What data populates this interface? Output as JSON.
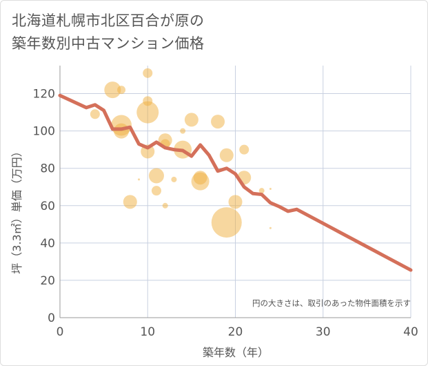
{
  "chart_data": {
    "type": "scatter",
    "title_lines": [
      "北海道札幌市北区百合が原の",
      "築年数別中古マンション価格"
    ],
    "xlabel": "築年数（年）",
    "ylabel": "坪（3.3㎡）単価（万円）",
    "xlim": [
      0,
      40
    ],
    "ylim": [
      0,
      135
    ],
    "xticks": [
      0,
      10,
      20,
      30,
      40
    ],
    "yticks": [
      0,
      20,
      40,
      60,
      80,
      100,
      120
    ],
    "grid": true,
    "note": "円の大きさは、取引のあった物件面積を示す",
    "colors": {
      "bubble": "#f0b040",
      "trend": "#d4705a",
      "grid": "#c8d0e0",
      "text": "#555555"
    },
    "bubbles": [
      {
        "x": 4,
        "y": 109,
        "s": 7
      },
      {
        "x": 6,
        "y": 122,
        "s": 12
      },
      {
        "x": 7,
        "y": 122,
        "s": 6
      },
      {
        "x": 7,
        "y": 103,
        "s": 15
      },
      {
        "x": 7,
        "y": 100,
        "s": 11
      },
      {
        "x": 8,
        "y": 62,
        "s": 10
      },
      {
        "x": 9,
        "y": 74,
        "s": 1.5
      },
      {
        "x": 10,
        "y": 131,
        "s": 7
      },
      {
        "x": 10,
        "y": 116,
        "s": 7
      },
      {
        "x": 10,
        "y": 110,
        "s": 16
      },
      {
        "x": 10,
        "y": 89,
        "s": 10
      },
      {
        "x": 11,
        "y": 76,
        "s": 11
      },
      {
        "x": 11,
        "y": 68,
        "s": 7
      },
      {
        "x": 12,
        "y": 95,
        "s": 10
      },
      {
        "x": 12,
        "y": 93,
        "s": 7
      },
      {
        "x": 12,
        "y": 60,
        "s": 4
      },
      {
        "x": 13,
        "y": 74,
        "s": 4
      },
      {
        "x": 14,
        "y": 100,
        "s": 4
      },
      {
        "x": 14,
        "y": 90,
        "s": 13
      },
      {
        "x": 15,
        "y": 106,
        "s": 10
      },
      {
        "x": 16,
        "y": 75,
        "s": 10
      },
      {
        "x": 16,
        "y": 73,
        "s": 13
      },
      {
        "x": 18,
        "y": 105,
        "s": 10
      },
      {
        "x": 19,
        "y": 87,
        "s": 10
      },
      {
        "x": 19,
        "y": 51,
        "s": 22
      },
      {
        "x": 20,
        "y": 62,
        "s": 10
      },
      {
        "x": 21,
        "y": 90,
        "s": 7
      },
      {
        "x": 21,
        "y": 75,
        "s": 10
      },
      {
        "x": 23,
        "y": 68,
        "s": 4
      },
      {
        "x": 24,
        "y": 69,
        "s": 1.5
      },
      {
        "x": 24,
        "y": 48,
        "s": 1.5
      }
    ],
    "trend": {
      "x": [
        0,
        3,
        4,
        5,
        6,
        7,
        8,
        9,
        10,
        11,
        12,
        13,
        14,
        15,
        16,
        17,
        18,
        19,
        20,
        21,
        22,
        23,
        24,
        25,
        26,
        27,
        28,
        29,
        30,
        31,
        32,
        33,
        34,
        35,
        36,
        37,
        38,
        39,
        40
      ],
      "y": [
        119,
        112.5,
        114,
        111,
        101,
        101,
        102,
        93,
        91,
        94,
        91,
        90,
        89.5,
        86.5,
        92.5,
        87,
        78.5,
        80,
        77,
        70,
        66.5,
        66,
        61.5,
        59.5,
        57,
        58,
        55.5,
        53,
        50.5,
        48,
        45.5,
        43,
        40.5,
        38,
        35.5,
        33,
        30.5,
        28,
        25.5
      ]
    }
  }
}
